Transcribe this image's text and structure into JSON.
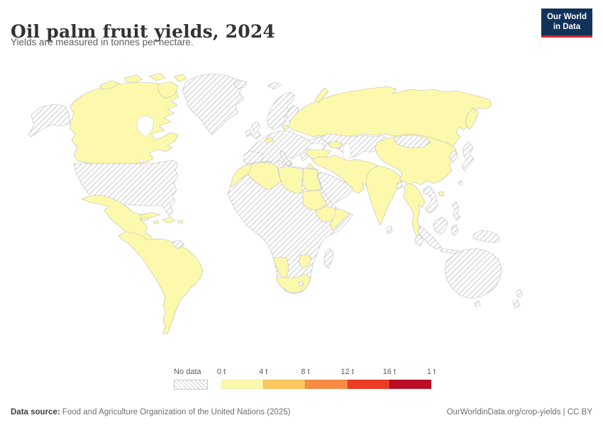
{
  "header": {
    "title": "Oil palm fruit yields, 2024",
    "subtitle": "Yields are measured in tonnes per hectare."
  },
  "logo": {
    "line1": "Our World",
    "line2": "in Data"
  },
  "colors": {
    "border": "#b9b9b9",
    "hatch": "#d9d9d9",
    "logo_bg": "#12325a",
    "logo_accent": "#d7282f",
    "title": "#333333",
    "subtitle": "#5f5f5f",
    "footer": "#6e6e6e",
    "legend_text": "#5b5b5b"
  },
  "legend": {
    "no_data_label": "No data",
    "tick_labels": [
      "0 t",
      "4 t",
      "8 t",
      "12 t",
      "16 t",
      "1 t"
    ],
    "bin_colors": [
      "#fcf9ad",
      "#fdc95e",
      "#f98b45",
      "#ec3c24",
      "#bb0d25"
    ]
  },
  "footer": {
    "source_label": "Data source:",
    "source_text": " Food and Agriculture Organization of the United Nations (2025)",
    "url": "OurWorldinData.org/crop-yields",
    "separator": " | ",
    "license": "CC BY"
  },
  "chart_data": {
    "type": "choropleth",
    "title": "Oil palm fruit yields, 2024",
    "subtitle": "Yields are measured in tonnes per hectare.",
    "unit": "tonnes per hectare",
    "year": 2024,
    "legend_position": "bottom",
    "bins": [
      {
        "label": "0 t",
        "color": "#fcf9ad"
      },
      {
        "label": "4 t",
        "color": "#fdc95e"
      },
      {
        "label": "8 t",
        "color": "#f98b45"
      },
      {
        "label": "12 t",
        "color": "#ec3c24"
      },
      {
        "label": "16 t",
        "color": "#bb0d25"
      }
    ],
    "end_tick_label": "1 t",
    "no_data_style": "gray diagonal hatching",
    "note": "All countries reporting data are shaded in the lowest (0–4 t) bin",
    "countries_lowest_bin": [
      "Canada",
      "Mexico",
      "Guatemala",
      "Honduras",
      "Nicaragua",
      "Costa Rica",
      "Panama",
      "Cuba",
      "Haiti",
      "Dominican Republic",
      "Colombia",
      "Venezuela",
      "Ecuador",
      "Peru",
      "Brazil",
      "Bolivia",
      "Paraguay",
      "Uruguay",
      "Argentina",
      "Chile",
      "Switzerland",
      "Latvia",
      "Russia",
      "Turkey",
      "Syria",
      "Iraq",
      "Israel",
      "Iran",
      "Turkmenistan",
      "Afghanistan",
      "Pakistan",
      "India",
      "Nepal",
      "China",
      "Myanmar",
      "Thailand",
      "Morocco",
      "Algeria",
      "Libya",
      "Egypt",
      "Sudan",
      "Ethiopia",
      "Somalia",
      "Namibia",
      "Zimbabwe",
      "South Africa"
    ],
    "countries_no_data": [
      "United States",
      "Greenland",
      "Iceland",
      "United Kingdom",
      "Ireland",
      "Norway",
      "Sweden",
      "Finland",
      "France",
      "Germany",
      "Spain",
      "Portugal",
      "Italy",
      "Poland",
      "Ukraine",
      "Guyana",
      "Suriname",
      "Mauritania",
      "Mali",
      "Niger",
      "Chad",
      "Nigeria",
      "Ghana",
      "DR Congo",
      "Kenya",
      "Tanzania",
      "Angola",
      "Zambia",
      "Mozambique",
      "Botswana",
      "Madagascar",
      "Saudi Arabia",
      "Yemen",
      "Oman",
      "Kazakhstan",
      "Uzbekistan",
      "Mongolia",
      "North Korea",
      "South Korea",
      "Japan",
      "Vietnam",
      "Laos",
      "Cambodia",
      "Malaysia",
      "Indonesia",
      "Philippines",
      "Papua New Guinea",
      "Australia",
      "New Zealand",
      "Sri Lanka",
      "Bangladesh"
    ]
  }
}
